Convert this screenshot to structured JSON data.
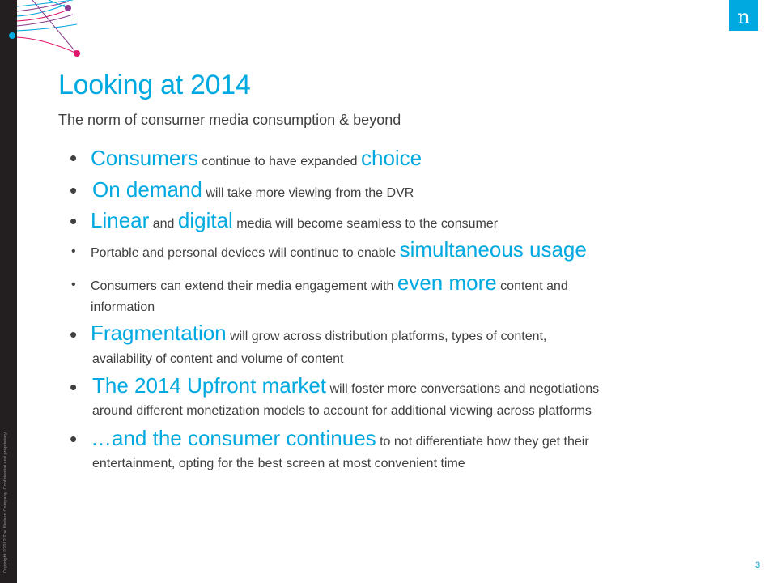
{
  "title": "Looking at 2014",
  "subtitle": "The norm of consumer media consumption & beyond",
  "copyright": "Copyright ©2012 The Nielsen Company. Confidential and proprietary.",
  "logo_letter": "n",
  "page_number": "3",
  "bullets": [
    {
      "h1": "Consumers",
      "t1": " continue to have expanded ",
      "h2": "choice"
    },
    {
      "h1": "On demand",
      "t1": " will take more viewing from the DVR"
    },
    {
      "h1": "Linear",
      "t1": " and ",
      "h2": "digital",
      "t2": " media will become seamless to the consumer"
    },
    {
      "t0": "Portable and personal devices will continue to enable ",
      "h1": "simultaneous usage"
    },
    {
      "t0": "Consumers can extend their media engagement with ",
      "h1": "even more",
      "t1": " content and",
      "line2": "information"
    },
    {
      "h1": "Fragmentation",
      "t1": " will grow across distribution platforms, types of content,",
      "line2": "availability of content and volume of content"
    },
    {
      "h1": "The 2014 Upfront market",
      "t1": " will foster more conversations and negotiations",
      "line2": "around different monetization models to account for additional viewing across platforms"
    },
    {
      "h1": "…and the consumer continues",
      "t1": "  to not differentiate  how they get their",
      "line2": "entertainment, opting for the best screen at most convenient time"
    }
  ],
  "colors": {
    "accent": "#00a9e0",
    "text": "#404040",
    "sidebar": "#231f20",
    "dot_pink": "#e0176b",
    "dot_purple": "#8b3d8f",
    "dot_blue": "#00a9e0"
  }
}
